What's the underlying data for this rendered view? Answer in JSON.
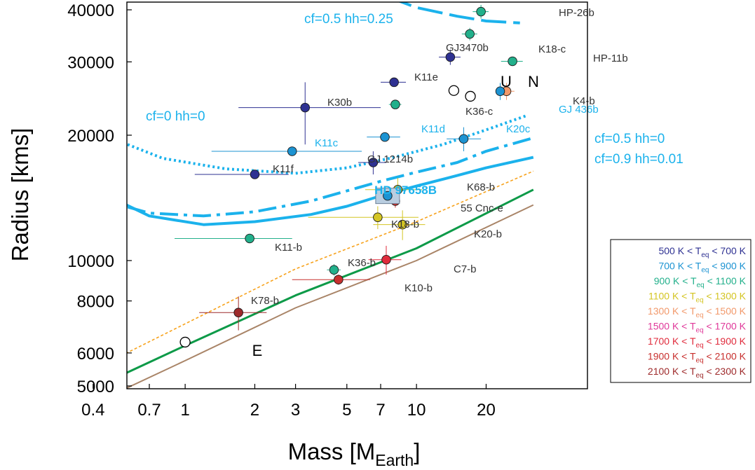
{
  "chart_data": {
    "type": "scatter",
    "xscale": "log",
    "yscale": "log",
    "xlabel": "Mass [M",
    "xlabel_sub": "Earth",
    "xlabel_end": "]",
    "ylabel": "Radius [kms]",
    "xlim": [
      0.3,
      32
    ],
    "ylim": [
      4800,
      42000
    ],
    "grid": false,
    "legend_position": "lower-right",
    "xticks": [
      {
        "value": 0.4,
        "label": "0.4"
      },
      {
        "value": 0.7,
        "label": "0.7"
      },
      {
        "value": 1,
        "label": "1"
      },
      {
        "value": 2,
        "label": "2"
      },
      {
        "value": 3,
        "label": "3"
      },
      {
        "value": 5,
        "label": "5"
      },
      {
        "value": 7,
        "label": "7"
      },
      {
        "value": 10,
        "label": "10"
      },
      {
        "value": 20,
        "label": "20"
      }
    ],
    "yticks": [
      {
        "value": 5000,
        "label": "5000"
      },
      {
        "value": 6000,
        "label": "6000"
      },
      {
        "value": 8000,
        "label": "8000"
      },
      {
        "value": 10000,
        "label": "10000"
      },
      {
        "value": 20000,
        "label": "20000"
      },
      {
        "value": 30000,
        "label": "30000"
      },
      {
        "value": 40000,
        "label": "40000"
      }
    ],
    "temperature_bins": [
      {
        "key": "t500",
        "low": "500 K < T",
        "sub": "eq",
        "high": " < 700 K",
        "color": "#2e3192"
      },
      {
        "key": "t700",
        "low": "700 K < T",
        "sub": "eq",
        "high": " < 900 K",
        "color": "#1c93d2"
      },
      {
        "key": "t900",
        "low": "900 K < T",
        "sub": "eq",
        "high": " < 1100 K",
        "color": "#22b08b"
      },
      {
        "key": "t1100",
        "low": "1100 K < T",
        "sub": "eq",
        "high": " < 1300 K",
        "color": "#d4c523"
      },
      {
        "key": "t1300",
        "low": "1300 K < T",
        "sub": "eq",
        "high": " < 1500 K",
        "color": "#f2996b"
      },
      {
        "key": "t1500",
        "low": "1500 K < T",
        "sub": "eq",
        "high": " < 1700 K",
        "color": "#e0399a"
      },
      {
        "key": "t1700",
        "low": "1700 K < T",
        "sub": "eq",
        "high": " < 1900 K",
        "color": "#e02b3c"
      },
      {
        "key": "t1900",
        "low": "1900 K < T",
        "sub": "eq",
        "high": " < 2100 K",
        "color": "#c8302e"
      },
      {
        "key": "t2100",
        "low": "2100 K < T",
        "sub": "eq",
        "high": " < 2300 K",
        "color": "#9e2a2b"
      }
    ],
    "planets": [
      {
        "label": "HP-26b",
        "mass": 19.0,
        "radius": 39600,
        "mass_err": [
          1.5,
          1.5
        ],
        "radius_err": [
          1500,
          1500
        ],
        "bin": "t900",
        "label_color": "#333333"
      },
      {
        "label": "K18-c",
        "mass": 17.0,
        "radius": 35000,
        "mass_err": [
          1.3,
          1.3
        ],
        "radius_err": [
          1200,
          1200
        ],
        "bin": "t900",
        "label_color": "#333333"
      },
      {
        "label": "GJ3470b",
        "mass": 14.0,
        "radius": 30800,
        "mass_err": [
          1.5,
          1.5
        ],
        "radius_err": [
          1300,
          1300
        ],
        "bin": "t500",
        "label_color": "#333333"
      },
      {
        "label": "HP-11b",
        "mass": 26.0,
        "radius": 30100,
        "mass_err": [
          2.8,
          2.8
        ],
        "radius_err": [
          500,
          500
        ],
        "bin": "t900",
        "label_color": "#333333"
      },
      {
        "label": "K11e",
        "mass": 8.0,
        "radius": 26800,
        "mass_err": [
          1.0,
          1.0
        ],
        "radius_err": [
          400,
          400
        ],
        "bin": "t500",
        "label_color": "#333333"
      },
      {
        "label": "K4-b",
        "mass": 24.5,
        "radius": 25500,
        "mass_err": [
          2.0,
          2.0
        ],
        "radius_err": [
          1200,
          1200
        ],
        "bin": "t1300",
        "label_color": "#333333"
      },
      {
        "label": "GJ 436b",
        "mass": 23.0,
        "radius": 25500,
        "mass_err": [
          1.0,
          1.0
        ],
        "radius_err": [
          1200,
          1200
        ],
        "bin": "t700",
        "label_color": "#1bb2ec"
      },
      {
        "label": "K30b",
        "mass": 3.3,
        "radius": 23300,
        "mass_err": [
          1.6,
          3.7
        ],
        "radius_err": [
          4300,
          3500
        ],
        "bin": "t500",
        "label_color": "#333333"
      },
      {
        "label": "K36-c",
        "mass": 8.1,
        "radius": 23700,
        "mass_err": [
          0.5,
          0.5
        ],
        "radius_err": [
          300,
          300
        ],
        "bin": "t900",
        "label_color": "#333333"
      },
      {
        "label": "K11d",
        "mass": 7.3,
        "radius": 19800,
        "mass_err": [
          1.2,
          1.2
        ],
        "radius_err": [
          300,
          300
        ],
        "bin": "t700",
        "label_color": "#1bb2ec"
      },
      {
        "label": "K20c",
        "mass": 16.0,
        "radius": 19600,
        "mass_err": [
          2.5,
          3.0
        ],
        "radius_err": [
          1300,
          1300
        ],
        "bin": "t700",
        "label_color": "#1bb2ec"
      },
      {
        "label": "K11c",
        "mass": 2.9,
        "radius": 18300,
        "mass_err": [
          1.6,
          2.9
        ],
        "radius_err": [
          300,
          300
        ],
        "bin": "t700",
        "label_color": "#1bb2ec"
      },
      {
        "label": "GJ 1214b",
        "mass": 6.5,
        "radius": 17200,
        "mass_err": [
          0.9,
          0.9
        ],
        "radius_err": [
          1100,
          1100
        ],
        "bin": "t500",
        "label_color": "#333333"
      },
      {
        "label": "K11f",
        "mass": 2.0,
        "radius": 16100,
        "mass_err": [
          0.9,
          0.8
        ],
        "radius_err": [
          300,
          300
        ],
        "bin": "t500",
        "label_color": "#333333"
      },
      {
        "label": "K68-b",
        "mass": 8.3,
        "radius": 14800,
        "mass_err": [
          2.3,
          2.3
        ],
        "radius_err": [
          1000,
          1000
        ],
        "bin": "t1100",
        "label_color": "#333333"
      },
      {
        "label": "55 Cnc-e",
        "mass": 8.1,
        "radius": 13900,
        "mass_err": [
          0.3,
          0.3
        ],
        "radius_err": [
          500,
          500
        ],
        "bin": "t1900",
        "label_color": "#333333"
      },
      {
        "label": "K18-b",
        "mass": 6.8,
        "radius": 12700,
        "mass_err": [
          3.4,
          3.4
        ],
        "radius_err": [
          800,
          800
        ],
        "bin": "t1100",
        "label_color": "#333333"
      },
      {
        "label": "K20-b",
        "mass": 8.7,
        "radius": 12200,
        "mass_err": [
          2.2,
          2.2
        ],
        "radius_err": [
          1000,
          1000
        ],
        "bin": "t1100",
        "label_color": "#333333"
      },
      {
        "label": "K11-b",
        "mass": 1.9,
        "radius": 11300,
        "mass_err": [
          1.0,
          1.0
        ],
        "radius_err": [
          200,
          200
        ],
        "bin": "t900",
        "label_color": "#333333"
      },
      {
        "label": "K36-b",
        "mass": 4.4,
        "radius": 9500,
        "mass_err": [
          0.3,
          0.3
        ],
        "radius_err": [
          300,
          300
        ],
        "bin": "t900",
        "label_color": "#333333"
      },
      {
        "label": "C7-b",
        "mass": 7.4,
        "radius": 10050,
        "mass_err": [
          1.2,
          1.2
        ],
        "radius_err": [
          800,
          800
        ],
        "bin": "t1700",
        "label_color": "#333333"
      },
      {
        "label": "K10-b",
        "mass": 4.6,
        "radius": 9000,
        "mass_err": [
          1.7,
          1.7
        ],
        "radius_err": [
          250,
          250
        ],
        "bin": "t1900",
        "label_color": "#333333"
      },
      {
        "label": "K78-b",
        "mass": 1.7,
        "radius": 7500,
        "mass_err": [
          0.55,
          0.55
        ],
        "radius_err": [
          700,
          700
        ],
        "bin": "t2100",
        "label_color": "#333333"
      }
    ],
    "highlight": {
      "label": "HD 97658B",
      "mass": 7.5,
      "radius": 14300,
      "mass_err": [
        0.7,
        0.7
      ],
      "radius_err": [
        500,
        500
      ],
      "bin": "t700",
      "label_color": "#1bb2ec"
    },
    "solar_system": [
      {
        "label": "U",
        "mass": 14.5,
        "radius": 25600
      },
      {
        "label": "N",
        "mass": 17.1,
        "radius": 24800
      },
      {
        "label": "E",
        "mass": 1.0,
        "radius": 6371
      }
    ],
    "curves": [
      {
        "label": "cf=0 hh=0",
        "style": "dotted",
        "color": "#1bb2ec",
        "points": [
          [
            0.3,
            22000
          ],
          [
            0.5,
            19500
          ],
          [
            0.8,
            17600
          ],
          [
            1.5,
            16600
          ],
          [
            3,
            16200
          ],
          [
            5,
            16700
          ],
          [
            8,
            17700
          ],
          [
            13,
            19000
          ],
          [
            20,
            20600
          ],
          [
            30,
            22300
          ]
        ]
      },
      {
        "label": "cf=0.9 hh=0.01",
        "style": "solid-thick",
        "color": "#1bb2ec",
        "points": [
          [
            0.3,
            15800
          ],
          [
            0.5,
            14000
          ],
          [
            0.7,
            12800
          ],
          [
            1.2,
            12200
          ],
          [
            2,
            12400
          ],
          [
            3.5,
            12900
          ],
          [
            5,
            13500
          ],
          [
            7,
            14300
          ],
          [
            10,
            15100
          ],
          [
            15,
            16000
          ],
          [
            20,
            16700
          ],
          [
            32,
            17700
          ]
        ]
      },
      {
        "label": "cf=0.5 hh=0",
        "style": "dashdot",
        "color": "#1bb2ec",
        "points": [
          [
            0.3,
            14800
          ],
          [
            0.5,
            13700
          ],
          [
            0.7,
            13000
          ],
          [
            1.2,
            12800
          ],
          [
            2,
            13100
          ],
          [
            3.5,
            13900
          ],
          [
            5,
            14700
          ],
          [
            7,
            15500
          ],
          [
            10,
            16300
          ],
          [
            15,
            17200
          ],
          [
            20,
            18300
          ],
          [
            32,
            19700
          ]
        ]
      },
      {
        "label": "cf=0.5 hh=0.25",
        "style": "dashed",
        "color": "#1bb2ec",
        "points": [
          [
            7.5,
            43000
          ],
          [
            10,
            40500
          ],
          [
            15,
            38600
          ],
          [
            20,
            37600
          ],
          [
            28,
            37200
          ]
        ]
      },
      {
        "label": "",
        "style": "orange-dotted",
        "color": "#f7a21b",
        "points": [
          [
            0.3,
            5050
          ],
          [
            1,
            7050
          ],
          [
            3,
            9550
          ],
          [
            10,
            12400
          ],
          [
            32,
            16400
          ]
        ]
      },
      {
        "label": "",
        "style": "solid",
        "color": "#0d9a48",
        "points": [
          [
            0.36,
            4800
          ],
          [
            1,
            6250
          ],
          [
            3,
            8250
          ],
          [
            10,
            10700
          ],
          [
            32,
            14800
          ]
        ]
      },
      {
        "label": "",
        "style": "solid-thin",
        "color": "#a98467",
        "points": [
          [
            0.5,
            4800
          ],
          [
            1,
            5750
          ],
          [
            3,
            7700
          ],
          [
            10,
            10000
          ],
          [
            32,
            13600
          ]
        ]
      }
    ]
  }
}
